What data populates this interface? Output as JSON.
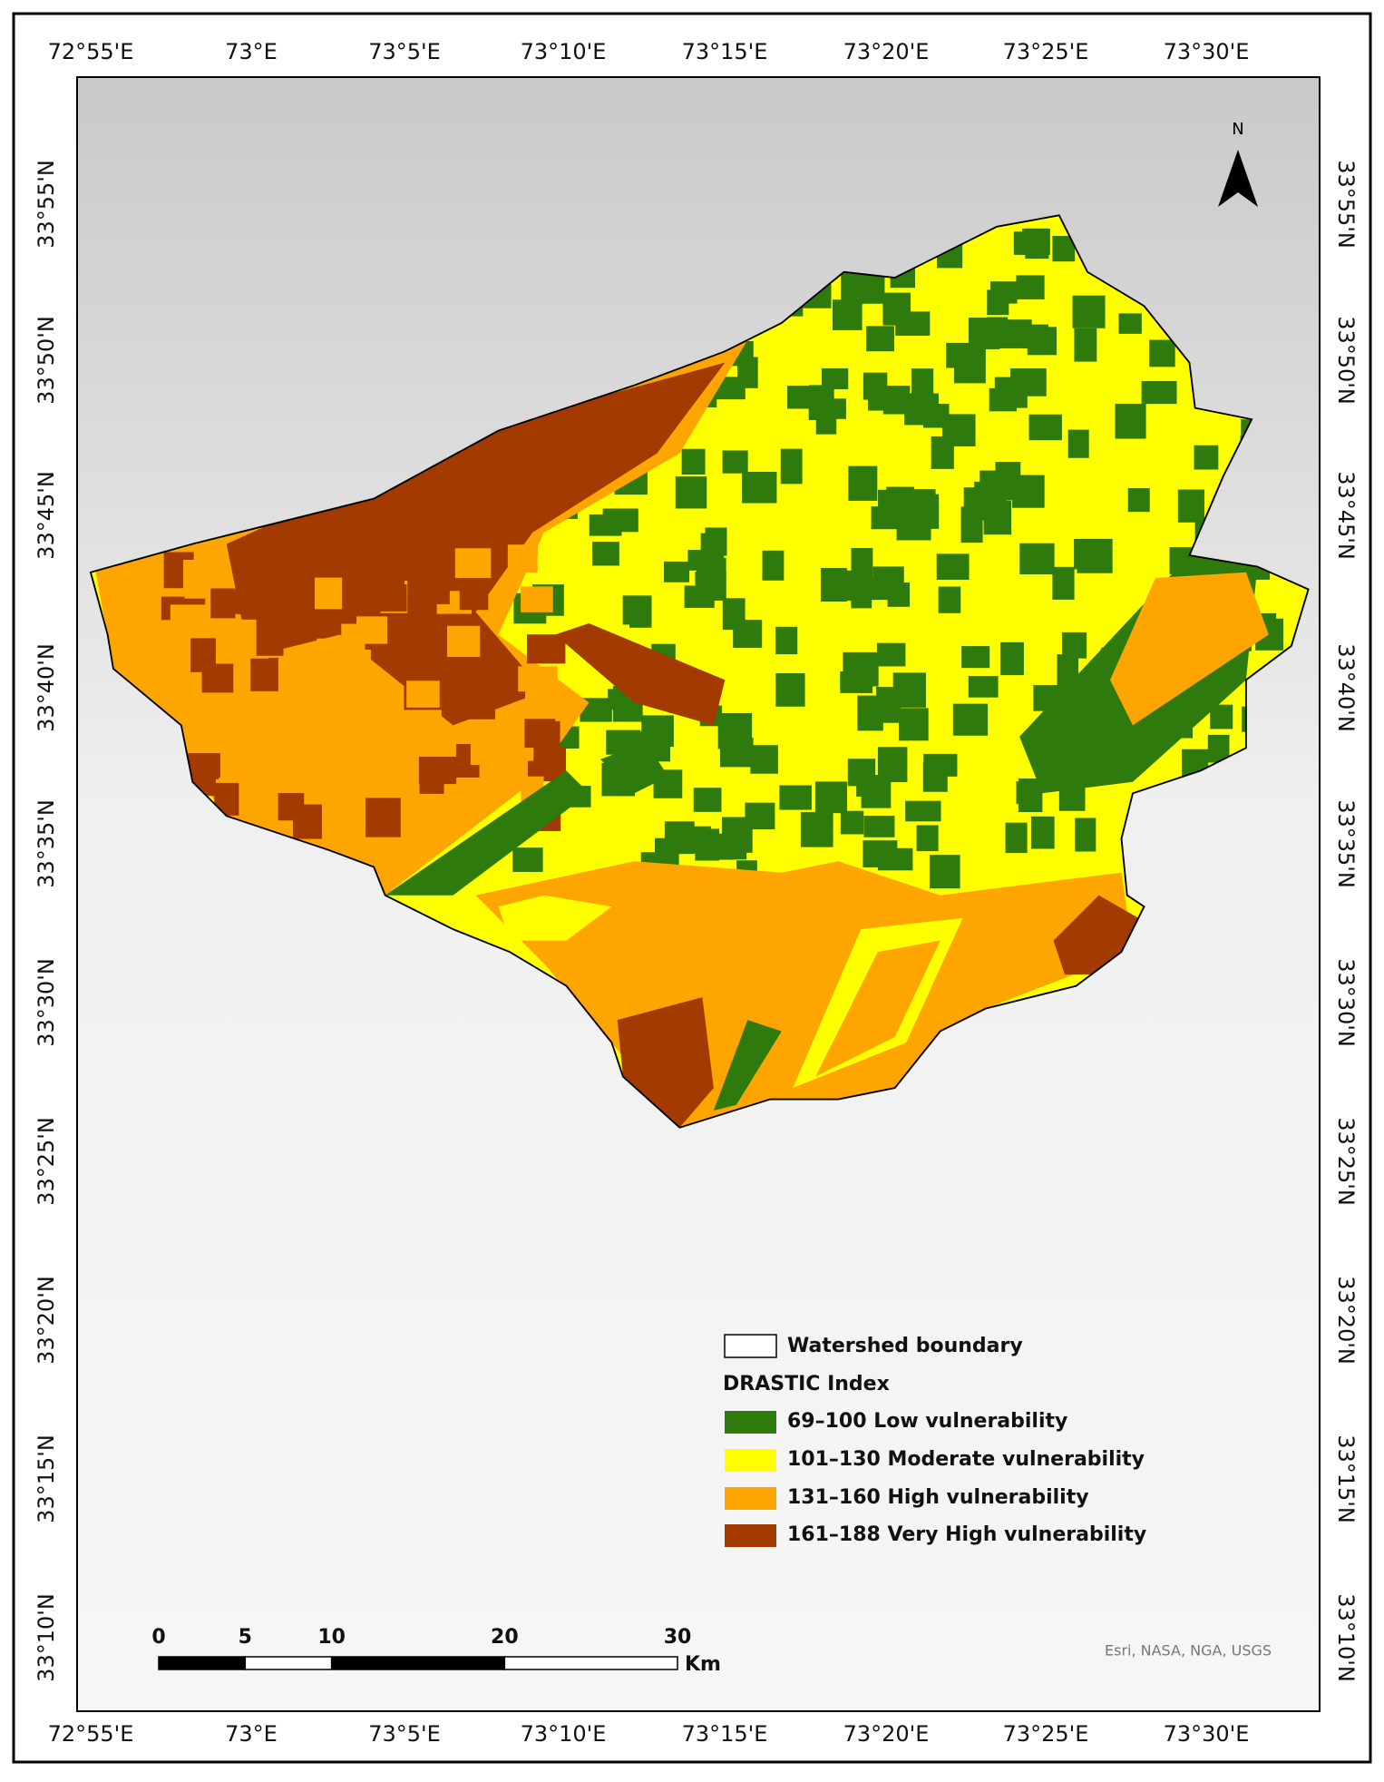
{
  "map": {
    "lon_labels": [
      "72°55'E",
      "73°E",
      "73°5'E",
      "73°10'E",
      "73°15'E",
      "73°20'E",
      "73°25'E",
      "73°30'E"
    ],
    "lat_labels": [
      "33°55'N",
      "33°50'N",
      "33°45'N",
      "33°40'N",
      "33°35'N",
      "33°30'N",
      "33°25'N",
      "33°20'N",
      "33°15'N",
      "33°10'N"
    ],
    "north": "N",
    "legend": {
      "boundary": "Watershed boundary",
      "title": "DRASTIC Index",
      "classes": [
        {
          "label": "69–100 Low vulnerability",
          "color": "#2f7a0c"
        },
        {
          "label": "101–130 Moderate vulnerability",
          "color": "#ffff00"
        },
        {
          "label": "131–160 High vulnerability",
          "color": "#ffa500"
        },
        {
          "label": "161–188 Very High vulnerability",
          "color": "#a33a00"
        }
      ]
    },
    "scale_bar": {
      "ticks": [
        0,
        5,
        10,
        20,
        30
      ],
      "unit": "Km"
    },
    "attribution": "Esri, NASA, NGA, USGS"
  }
}
